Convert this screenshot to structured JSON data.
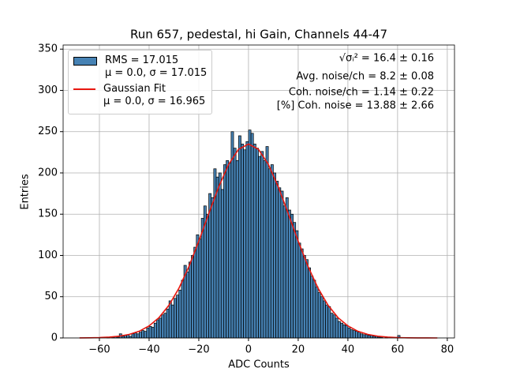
{
  "chart_data": {
    "type": "histogram",
    "title": "Run 657, pedestal, hi Gain, Channels 44-47",
    "xlabel": "ADC Counts",
    "ylabel": "Entries",
    "hist_name": "RMS = 17.015\nμ = 0.0, σ = 17.015",
    "color": "#4682b4",
    "edgecolor": "#000000",
    "bins": [
      -60,
      -59,
      -58,
      -57,
      -56,
      -55,
      -54,
      -53,
      -52,
      -51,
      -50,
      -49,
      -48,
      -47,
      -46,
      -45,
      -44,
      -43,
      -42,
      -41,
      -40,
      -39,
      -38,
      -37,
      -36,
      -35,
      -34,
      -33,
      -32,
      -31,
      -30,
      -29,
      -28,
      -27,
      -26,
      -25,
      -24,
      -23,
      -22,
      -21,
      -20,
      -19,
      -18,
      -17,
      -16,
      -15,
      -14,
      -13,
      -12,
      -11,
      -10,
      -9,
      -8,
      -7,
      -6,
      -5,
      -4,
      -3,
      -2,
      -1,
      0,
      1,
      2,
      3,
      4,
      5,
      6,
      7,
      8,
      9,
      10,
      11,
      12,
      13,
      14,
      15,
      16,
      17,
      18,
      19,
      20,
      21,
      22,
      23,
      24,
      25,
      26,
      27,
      28,
      29,
      30,
      31,
      32,
      33,
      34,
      35,
      36,
      37,
      38,
      39,
      40,
      41,
      42,
      43,
      44,
      45,
      46,
      47,
      48,
      49,
      50,
      51,
      52,
      53,
      54,
      55,
      56,
      57,
      58,
      59,
      60,
      61,
      62
    ],
    "values": [
      0,
      0,
      0,
      1,
      0,
      1,
      2,
      1,
      5,
      2,
      3,
      4,
      2,
      5,
      6,
      5,
      7,
      9,
      8,
      12,
      14,
      13,
      18,
      22,
      24,
      28,
      30,
      35,
      45,
      40,
      48,
      52,
      58,
      70,
      88,
      80,
      92,
      100,
      110,
      125,
      120,
      145,
      160,
      150,
      175,
      170,
      205,
      195,
      200,
      180,
      210,
      215,
      212,
      250,
      230,
      215,
      245,
      235,
      228,
      238,
      252,
      248,
      235,
      230,
      220,
      226,
      215,
      232,
      205,
      210,
      200,
      190,
      182,
      178,
      160,
      170,
      155,
      150,
      140,
      130,
      115,
      108,
      100,
      95,
      85,
      75,
      70,
      62,
      55,
      50,
      45,
      40,
      38,
      30,
      28,
      24,
      20,
      18,
      16,
      15,
      12,
      10,
      9,
      8,
      7,
      5,
      4,
      4,
      3,
      3,
      2,
      2,
      1,
      1,
      0,
      1,
      0,
      0,
      0,
      0,
      3,
      0
    ],
    "fit": {
      "name": "Gaussian Fit\nμ = 0.0, σ = 16.965",
      "color": "#e8170f",
      "x": [
        -68,
        -64,
        -60,
        -56,
        -52,
        -48,
        -44,
        -40,
        -36,
        -32,
        -28,
        -24,
        -20,
        -16,
        -12,
        -8,
        -4,
        0,
        4,
        8,
        12,
        16,
        20,
        24,
        28,
        32,
        36,
        40,
        44,
        48,
        52,
        56,
        60,
        64,
        68,
        72,
        76
      ],
      "values": [
        0.08,
        0.19,
        0.45,
        1.01,
        2.14,
        4.29,
        8.1,
        14.6,
        24.7,
        39.7,
        60.2,
        86.4,
        117.3,
        150.6,
        183.0,
        210.3,
        228.6,
        235,
        228.6,
        210.3,
        183.0,
        150.6,
        117.3,
        86.4,
        60.2,
        39.7,
        24.7,
        14.6,
        8.1,
        4.29,
        2.14,
        1.01,
        0.45,
        0.19,
        0.08,
        0.02,
        0.01
      ]
    },
    "annotations": [
      "√σᵢ² = 16.4 ± 0.16",
      "Avg. noise/ch = 8.2 ± 0.08",
      "Coh. noise/ch = 1.14 ± 0.22",
      "[%] Coh. noise = 13.88 ± 2.66"
    ],
    "xlim": [
      -74.6,
      82.9
    ],
    "ylim": [
      0,
      355
    ],
    "xticks": [
      {
        "value": -60,
        "label": "−60"
      },
      {
        "value": -40,
        "label": "−40"
      },
      {
        "value": -20,
        "label": "−20"
      },
      0,
      20,
      40,
      60,
      80
    ],
    "yticks": [
      0,
      50,
      100,
      150,
      200,
      250,
      300,
      350
    ],
    "grid": true,
    "legend": "upper left"
  }
}
